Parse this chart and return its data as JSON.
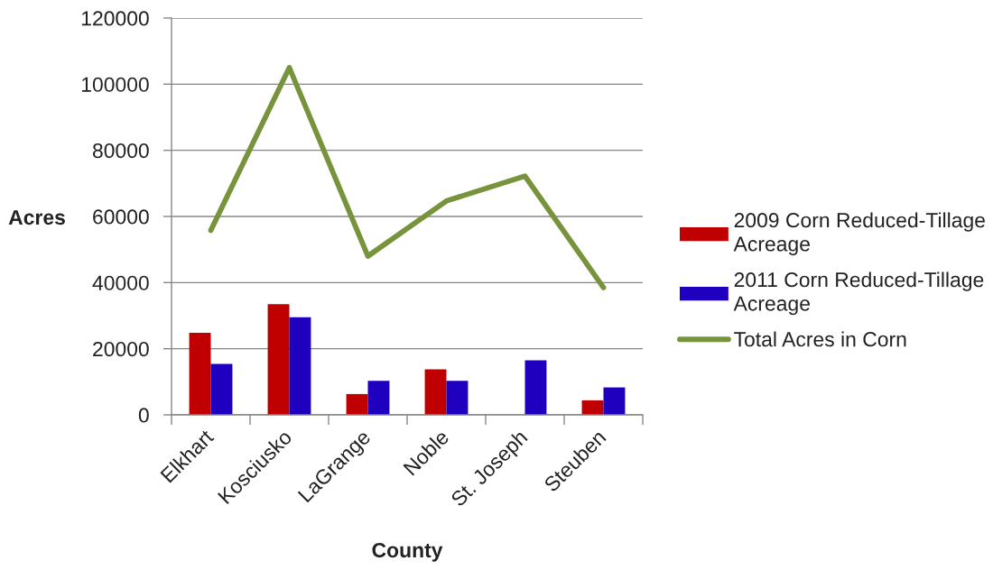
{
  "chart_data": {
    "type": "bar",
    "xlabel": "County",
    "ylabel": "Acres",
    "categories": [
      "Elkhart",
      "Kosciusko",
      "LaGrange",
      "Noble",
      "St. Joseph",
      "Steuben"
    ],
    "series": [
      {
        "name": "2009 Corn Reduced-Tillage Acreage",
        "color": "#c00000",
        "values": [
          24800,
          33500,
          6300,
          13800,
          null,
          4400
        ]
      },
      {
        "name": "2011 Corn Reduced-Tillage Acreage",
        "color": "#1f00bf",
        "values": [
          15400,
          29500,
          10300,
          10300,
          16500,
          8300
        ]
      },
      {
        "name": "Total Acres in Corn",
        "type": "line",
        "color": "#77933c",
        "values": [
          55800,
          105000,
          48000,
          64700,
          72200,
          38500
        ]
      }
    ],
    "ylim": [
      0,
      120000
    ],
    "yticks": [
      0,
      20000,
      40000,
      60000,
      80000,
      100000,
      120000
    ],
    "grid": "y",
    "legend": "right"
  }
}
